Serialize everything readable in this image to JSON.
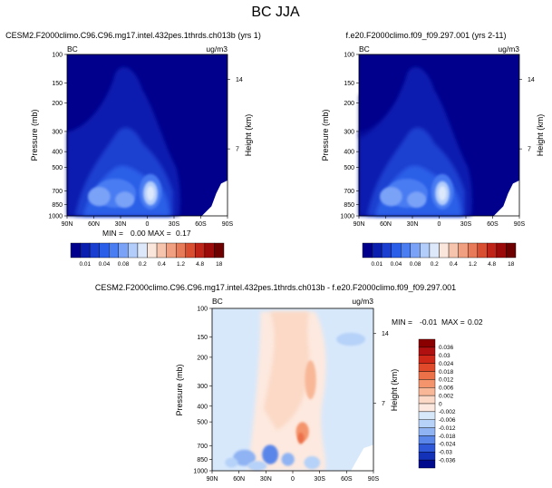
{
  "page_title": "BC JJA",
  "chart_data": [
    {
      "type": "contour",
      "title": "CESM2.F2000climo.C96.C96.mg17.intel.432pes.1thrds.ch013b (yrs 1)",
      "var_label": "BC",
      "units": "ug/m3",
      "ylabel": "Pressure (mb)",
      "ylabel_right": "Height (km)",
      "x_ticks": [
        "90N",
        "60N",
        "30N",
        "0",
        "30S",
        "60S",
        "90S"
      ],
      "y_ticks": [
        "100",
        "150",
        "200",
        "300",
        "400",
        "500",
        "700",
        "850",
        "1000"
      ],
      "height_ticks": [
        "14",
        "7"
      ],
      "stats": {
        "min_label": "MIN =",
        "min": "0.00",
        "max_label": "MAX =",
        "max": "0.17"
      },
      "levels": [
        "0.01",
        "0.04",
        "0.08",
        "0.2",
        "0.4",
        "1.2",
        "4.8",
        "18"
      ],
      "colors": [
        "#00008c",
        "#0a1fb0",
        "#1a3fd0",
        "#2b5ee8",
        "#4a7cf2",
        "#7aa2f7",
        "#b3cdfa",
        "#dde8fb",
        "#fbe6dc",
        "#f6c4ac",
        "#f0a080",
        "#e77a58",
        "#d94d30",
        "#c02418",
        "#9c0a0a",
        "#6e0000"
      ]
    },
    {
      "type": "contour",
      "title": "f.e20.F2000climo.f09_f09.297.001 (yrs 2-11)",
      "var_label": "BC",
      "units": "ug/m3",
      "ylabel": "Pressure (mb)",
      "ylabel_right": "Height (km)",
      "x_ticks": [
        "90N",
        "60N",
        "30N",
        "0",
        "30S",
        "60S",
        "90S"
      ],
      "y_ticks": [
        "100",
        "150",
        "200",
        "300",
        "400",
        "500",
        "700",
        "850",
        "1000"
      ],
      "height_ticks": [
        "14",
        "7"
      ],
      "levels": [
        "0.01",
        "0.04",
        "0.08",
        "0.2",
        "0.4",
        "1.2",
        "4.8",
        "18"
      ]
    },
    {
      "type": "contour-difference",
      "title": "CESM2.F2000climo.C96.C96.mg17.intel.432pes.1thrds.ch013b - f.e20.F2000climo.f09_f09.297.001",
      "var_label": "BC",
      "units": "ug/m3",
      "ylabel": "Pressure (mb)",
      "ylabel_right": "Height (km)",
      "x_ticks": [
        "90N",
        "60N",
        "30N",
        "0",
        "30S",
        "60S",
        "90S"
      ],
      "y_ticks": [
        "100",
        "150",
        "200",
        "300",
        "400",
        "500",
        "700",
        "850",
        "1000"
      ],
      "height_ticks": [
        "14",
        "7"
      ],
      "stats": {
        "min_label": "MIN =",
        "min": "-0.01",
        "max_label": "MAX =",
        "max": "0.02"
      },
      "levels": [
        "0.036",
        "0.03",
        "0.024",
        "0.018",
        "0.012",
        "0.006",
        "0.002",
        "0",
        "-0.002",
        "-0.006",
        "-0.012",
        "-0.018",
        "-0.024",
        "-0.03",
        "-0.036"
      ],
      "colors": [
        "#8a0000",
        "#b01010",
        "#d02818",
        "#e04a2a",
        "#ec7048",
        "#f4946c",
        "#f8b898",
        "#fbd9c6",
        "#fde9df",
        "#d7e8fb",
        "#b6d2f8",
        "#8fb3f3",
        "#5a86ea",
        "#2e58d8",
        "#1432b8",
        "#000a8c"
      ]
    }
  ]
}
